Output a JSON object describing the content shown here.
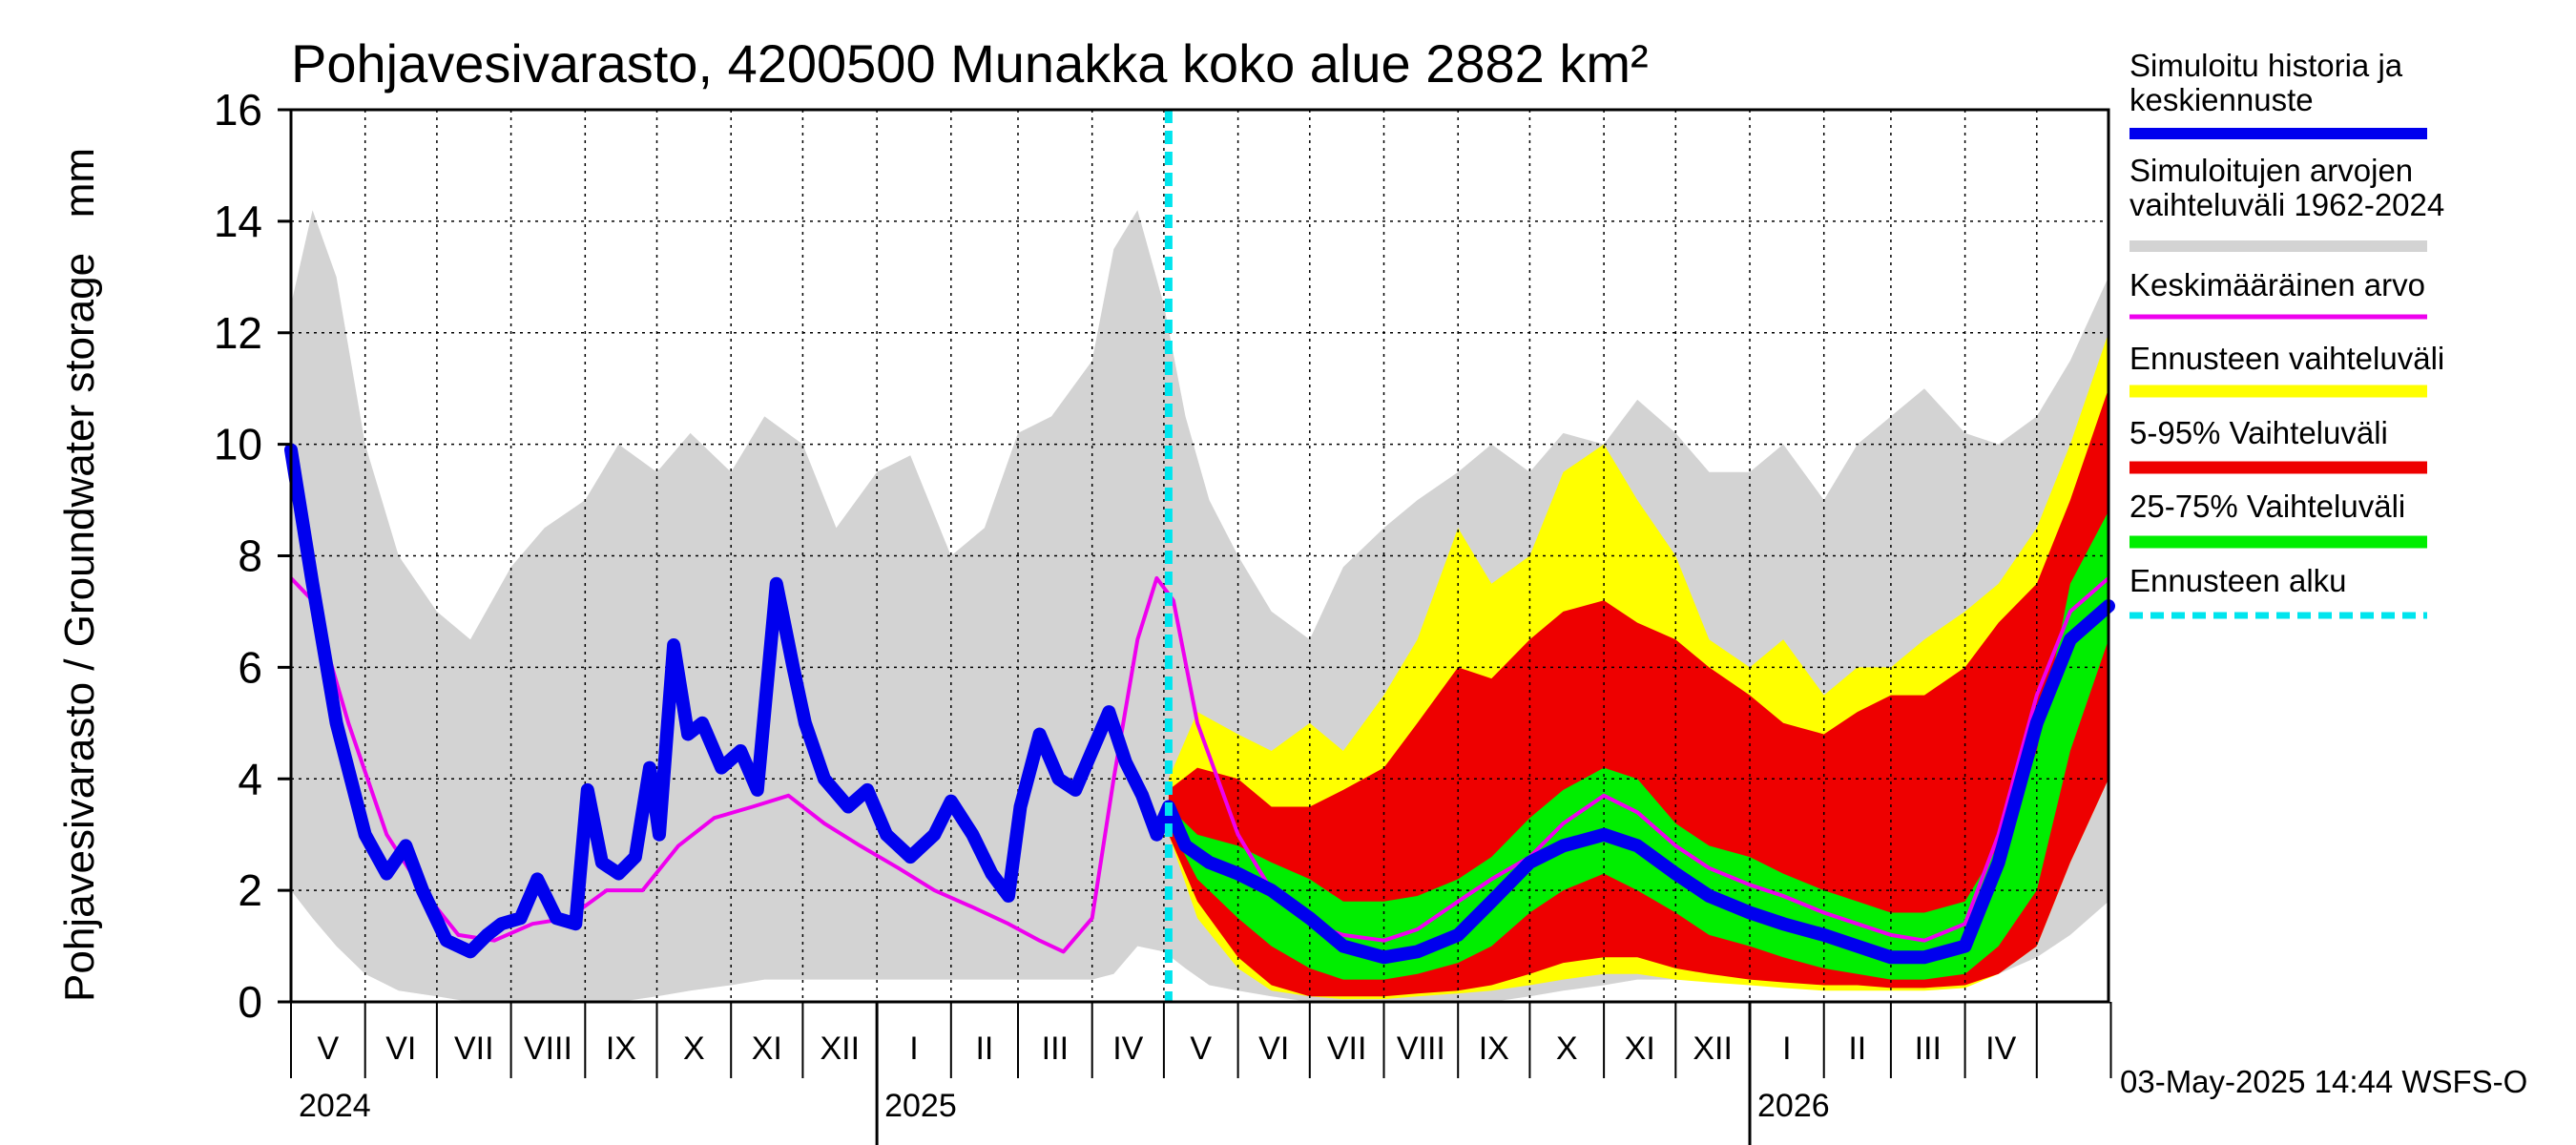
{
  "chart_data": {
    "type": "area",
    "title": "Pohjavesivarasto, 4200500 Munakka koko alue 2882 km²",
    "ylabel": "Pohjavesivarasto / Groundwater storage   mm",
    "ylim": [
      0,
      16
    ],
    "yticks": [
      "0",
      "2",
      "4",
      "6",
      "8",
      "10",
      "12",
      "14",
      "16"
    ],
    "xrange": [
      "2024-05-01",
      "2026-05-31"
    ],
    "months": [
      {
        "label": "V",
        "start": "2024-05-01"
      },
      {
        "label": "VI",
        "start": "2024-06-01"
      },
      {
        "label": "VII",
        "start": "2024-07-01"
      },
      {
        "label": "VIII",
        "start": "2024-08-01"
      },
      {
        "label": "IX",
        "start": "2024-09-01"
      },
      {
        "label": "X",
        "start": "2024-10-01"
      },
      {
        "label": "XI",
        "start": "2024-11-01"
      },
      {
        "label": "XII",
        "start": "2024-12-01"
      },
      {
        "label": "I",
        "start": "2025-01-01"
      },
      {
        "label": "II",
        "start": "2025-02-01"
      },
      {
        "label": "III",
        "start": "2025-03-01"
      },
      {
        "label": "IV",
        "start": "2025-04-01"
      },
      {
        "label": "V",
        "start": "2025-05-01"
      },
      {
        "label": "VI",
        "start": "2025-06-01"
      },
      {
        "label": "VII",
        "start": "2025-07-01"
      },
      {
        "label": "VIII",
        "start": "2025-08-01"
      },
      {
        "label": "IX",
        "start": "2025-09-01"
      },
      {
        "label": "X",
        "start": "2025-10-01"
      },
      {
        "label": "XI",
        "start": "2025-11-01"
      },
      {
        "label": "XII",
        "start": "2025-12-01"
      },
      {
        "label": "I",
        "start": "2026-01-01"
      },
      {
        "label": "II",
        "start": "2026-02-01"
      },
      {
        "label": "III",
        "start": "2026-03-01"
      },
      {
        "label": "IV",
        "start": "2026-04-01"
      },
      {
        "label": "",
        "start": "2026-05-01"
      },
      {
        "label": "",
        "start": "2026-06-01"
      }
    ],
    "years": [
      {
        "label": "2024",
        "start": "2024-05-01"
      },
      {
        "label": "2025",
        "start": "2025-01-01"
      },
      {
        "label": "2026",
        "start": "2026-01-01"
      }
    ],
    "forecast_start": "2025-05-03",
    "colors": {
      "history": "#0000ee",
      "hist_range": "#d3d3d3",
      "mean": "#ee00ee",
      "fc_range": "#ffff00",
      "p5_95": "#ee0000",
      "p25_75": "#00ee00",
      "fc_start": "#00e5ee"
    },
    "legend": [
      {
        "key": "history",
        "text": [
          "Simuloitu historia ja",
          "keskiennuste"
        ],
        "color": "#0000ee"
      },
      {
        "key": "hist_range",
        "text": [
          "Simuloitujen arvojen",
          "vaihteluväli 1962-2024"
        ],
        "color": "#d3d3d3"
      },
      {
        "key": "mean",
        "text": [
          "Keskimääräinen arvo"
        ],
        "color": "#ee00ee"
      },
      {
        "key": "fc_range",
        "text": [
          "Ennusteen vaihteluväli"
        ],
        "color": "#ffff00"
      },
      {
        "key": "p5_95",
        "text": [
          "5-95% Vaihteluväli"
        ],
        "color": "#ee0000"
      },
      {
        "key": "p25_75",
        "text": [
          "25-75% Vaihteluväli"
        ],
        "color": "#00ee00"
      },
      {
        "key": "fc_start",
        "text": [
          "Ennusteen alku"
        ],
        "color": "#00e5ee"
      }
    ],
    "series": [
      {
        "key": "hist_range",
        "kind": "band",
        "x": [
          "2024-05-01",
          "2024-05-10",
          "2024-05-20",
          "2024-06-01",
          "2024-06-15",
          "2024-07-01",
          "2024-07-15",
          "2024-08-01",
          "2024-08-15",
          "2024-09-01",
          "2024-09-15",
          "2024-10-01",
          "2024-10-15",
          "2024-11-01",
          "2024-11-15",
          "2024-12-01",
          "2024-12-15",
          "2025-01-01",
          "2025-01-15",
          "2025-02-01",
          "2025-02-15",
          "2025-03-01",
          "2025-03-15",
          "2025-04-01",
          "2025-04-10",
          "2025-04-20",
          "2025-05-01",
          "2025-05-10",
          "2025-05-20",
          "2025-06-01",
          "2025-06-15",
          "2025-07-01",
          "2025-07-15",
          "2025-08-01",
          "2025-08-15",
          "2025-09-01",
          "2025-09-15",
          "2025-10-01",
          "2025-10-15",
          "2025-11-01",
          "2025-11-15",
          "2025-12-01",
          "2025-12-15",
          "2026-01-01",
          "2026-01-15",
          "2026-02-01",
          "2026-02-15",
          "2026-03-01",
          "2026-03-15",
          "2026-04-01",
          "2026-04-15",
          "2026-05-01",
          "2026-05-15",
          "2026-05-31"
        ],
        "low": [
          2.0,
          1.5,
          1.0,
          0.5,
          0.2,
          0.1,
          0.0,
          0.0,
          0.0,
          0.0,
          0.0,
          0.1,
          0.2,
          0.3,
          0.4,
          0.4,
          0.4,
          0.4,
          0.4,
          0.4,
          0.4,
          0.4,
          0.4,
          0.4,
          0.5,
          1.0,
          0.9,
          0.6,
          0.3,
          0.2,
          0.1,
          0.0,
          0.0,
          0.0,
          0.0,
          0.0,
          0.0,
          0.1,
          0.2,
          0.3,
          0.4,
          0.4,
          0.4,
          0.4,
          0.4,
          0.4,
          0.4,
          0.4,
          0.4,
          0.4,
          0.5,
          0.8,
          1.2,
          1.8
        ],
        "high": [
          12.5,
          14.2,
          13.0,
          10.0,
          8.0,
          7.0,
          6.5,
          7.8,
          8.5,
          9.0,
          10.0,
          9.5,
          10.2,
          9.5,
          10.5,
          10.0,
          8.5,
          9.5,
          9.8,
          8.0,
          8.5,
          10.2,
          10.5,
          11.5,
          13.5,
          14.2,
          12.5,
          10.5,
          9.0,
          8.0,
          7.0,
          6.5,
          7.8,
          8.5,
          9.0,
          9.5,
          10.0,
          9.5,
          10.2,
          10.0,
          10.8,
          10.2,
          9.5,
          9.5,
          10.0,
          9.0,
          10.0,
          10.5,
          11.0,
          10.2,
          10.0,
          10.5,
          11.5,
          13.0
        ]
      },
      {
        "key": "fc_range",
        "kind": "band",
        "x": [
          "2025-05-03",
          "2025-05-15",
          "2025-06-01",
          "2025-06-15",
          "2025-07-01",
          "2025-07-15",
          "2025-08-01",
          "2025-08-15",
          "2025-09-01",
          "2025-09-15",
          "2025-10-01",
          "2025-10-15",
          "2025-11-01",
          "2025-11-15",
          "2025-12-01",
          "2025-12-15",
          "2026-01-01",
          "2026-01-15",
          "2026-02-01",
          "2026-02-15",
          "2026-03-01",
          "2026-03-15",
          "2026-04-01",
          "2026-04-15",
          "2026-05-01",
          "2026-05-15",
          "2026-05-31"
        ],
        "low": [
          3.0,
          1.5,
          0.6,
          0.2,
          0.1,
          0.05,
          0.05,
          0.1,
          0.15,
          0.2,
          0.3,
          0.4,
          0.5,
          0.5,
          0.4,
          0.35,
          0.3,
          0.25,
          0.2,
          0.2,
          0.2,
          0.2,
          0.25,
          0.5,
          1.0,
          2.5,
          4.0
        ],
        "high": [
          4.0,
          5.2,
          4.8,
          4.5,
          5.0,
          4.5,
          5.5,
          6.5,
          8.5,
          7.5,
          8.0,
          9.5,
          10.0,
          9.0,
          8.0,
          6.5,
          6.0,
          6.5,
          5.5,
          6.0,
          6.0,
          6.5,
          7.0,
          7.5,
          8.5,
          10.0,
          12.0
        ]
      },
      {
        "key": "p5_95",
        "kind": "band",
        "x": [
          "2025-05-03",
          "2025-05-15",
          "2025-06-01",
          "2025-06-15",
          "2025-07-01",
          "2025-07-15",
          "2025-08-01",
          "2025-08-15",
          "2025-09-01",
          "2025-09-15",
          "2025-10-01",
          "2025-10-15",
          "2025-11-01",
          "2025-11-15",
          "2025-12-01",
          "2025-12-15",
          "2026-01-01",
          "2026-01-15",
          "2026-02-01",
          "2026-02-15",
          "2026-03-01",
          "2026-03-15",
          "2026-04-01",
          "2026-04-15",
          "2026-05-01",
          "2026-05-15",
          "2026-05-31"
        ],
        "low": [
          3.0,
          1.8,
          0.8,
          0.3,
          0.1,
          0.1,
          0.1,
          0.15,
          0.2,
          0.3,
          0.5,
          0.7,
          0.8,
          0.8,
          0.6,
          0.5,
          0.4,
          0.35,
          0.3,
          0.3,
          0.25,
          0.25,
          0.3,
          0.5,
          1.0,
          2.5,
          4.0
        ],
        "high": [
          3.8,
          4.2,
          4.0,
          3.5,
          3.5,
          3.8,
          4.2,
          5.0,
          6.0,
          5.8,
          6.5,
          7.0,
          7.2,
          6.8,
          6.5,
          6.0,
          5.5,
          5.0,
          4.8,
          5.2,
          5.5,
          5.5,
          6.0,
          6.8,
          7.5,
          9.0,
          11.0
        ]
      },
      {
        "key": "p25_75",
        "kind": "band",
        "x": [
          "2025-05-03",
          "2025-05-15",
          "2025-06-01",
          "2025-06-15",
          "2025-07-01",
          "2025-07-15",
          "2025-08-01",
          "2025-08-15",
          "2025-09-01",
          "2025-09-15",
          "2025-10-01",
          "2025-10-15",
          "2025-11-01",
          "2025-11-15",
          "2025-12-01",
          "2025-12-15",
          "2026-01-01",
          "2026-01-15",
          "2026-02-01",
          "2026-02-15",
          "2026-03-01",
          "2026-03-15",
          "2026-04-01",
          "2026-04-15",
          "2026-05-01",
          "2026-05-15",
          "2026-05-31"
        ],
        "low": [
          3.2,
          2.2,
          1.5,
          1.0,
          0.6,
          0.4,
          0.4,
          0.5,
          0.7,
          1.0,
          1.6,
          2.0,
          2.3,
          2.0,
          1.6,
          1.2,
          1.0,
          0.8,
          0.6,
          0.5,
          0.4,
          0.4,
          0.5,
          1.0,
          2.0,
          4.5,
          6.5
        ],
        "high": [
          3.5,
          3.0,
          2.8,
          2.5,
          2.2,
          1.8,
          1.8,
          1.9,
          2.2,
          2.6,
          3.3,
          3.8,
          4.2,
          4.0,
          3.2,
          2.8,
          2.6,
          2.3,
          2.0,
          1.8,
          1.6,
          1.6,
          1.8,
          2.8,
          4.5,
          7.5,
          8.8
        ]
      },
      {
        "key": "mean",
        "kind": "line",
        "x": [
          "2024-05-01",
          "2024-05-10",
          "2024-05-25",
          "2024-06-10",
          "2024-06-25",
          "2024-07-10",
          "2024-07-25",
          "2024-08-10",
          "2024-08-25",
          "2024-09-10",
          "2024-09-25",
          "2024-10-10",
          "2024-10-25",
          "2024-11-10",
          "2024-11-25",
          "2024-12-10",
          "2024-12-25",
          "2025-01-10",
          "2025-01-25",
          "2025-02-10",
          "2025-02-25",
          "2025-03-10",
          "2025-03-20",
          "2025-04-01",
          "2025-04-10",
          "2025-04-20",
          "2025-04-28",
          "2025-05-05",
          "2025-05-15",
          "2025-06-01",
          "2025-06-15",
          "2025-07-01",
          "2025-07-15",
          "2025-08-01",
          "2025-08-15",
          "2025-09-01",
          "2025-09-15",
          "2025-10-01",
          "2025-10-15",
          "2025-11-01",
          "2025-11-15",
          "2025-12-01",
          "2025-12-15",
          "2026-01-01",
          "2026-01-15",
          "2026-02-01",
          "2026-02-15",
          "2026-03-01",
          "2026-03-15",
          "2026-04-01",
          "2026-04-15",
          "2026-05-01",
          "2026-05-15",
          "2026-05-31"
        ],
        "y": [
          7.6,
          7.2,
          5.0,
          3.0,
          2.0,
          1.2,
          1.1,
          1.4,
          1.5,
          2.0,
          2.0,
          2.8,
          3.3,
          3.5,
          3.7,
          3.2,
          2.8,
          2.4,
          2.0,
          1.7,
          1.4,
          1.1,
          0.9,
          1.5,
          4.0,
          6.5,
          7.6,
          7.2,
          5.0,
          3.0,
          2.0,
          1.4,
          1.2,
          1.1,
          1.3,
          1.8,
          2.2,
          2.6,
          3.2,
          3.7,
          3.4,
          2.8,
          2.4,
          2.1,
          1.9,
          1.6,
          1.4,
          1.2,
          1.1,
          1.4,
          3.0,
          5.5,
          7.0,
          7.6
        ]
      },
      {
        "key": "history",
        "kind": "line",
        "x": [
          "2024-05-01",
          "2024-05-10",
          "2024-05-20",
          "2024-06-01",
          "2024-06-10",
          "2024-06-18",
          "2024-06-25",
          "2024-07-05",
          "2024-07-15",
          "2024-07-22",
          "2024-07-28",
          "2024-08-05",
          "2024-08-12",
          "2024-08-20",
          "2024-08-28",
          "2024-09-02",
          "2024-09-08",
          "2024-09-15",
          "2024-09-22",
          "2024-09-28",
          "2024-10-02",
          "2024-10-08",
          "2024-10-14",
          "2024-10-20",
          "2024-10-28",
          "2024-11-05",
          "2024-11-12",
          "2024-11-20",
          "2024-11-27",
          "2024-12-02",
          "2024-12-10",
          "2024-12-20",
          "2024-12-28",
          "2025-01-05",
          "2025-01-15",
          "2025-01-25",
          "2025-02-01",
          "2025-02-10",
          "2025-02-18",
          "2025-02-25",
          "2025-03-02",
          "2025-03-10",
          "2025-03-18",
          "2025-03-25",
          "2025-04-01",
          "2025-04-08",
          "2025-04-15",
          "2025-04-22",
          "2025-04-28",
          "2025-05-03",
          "2025-05-10",
          "2025-05-20",
          "2025-06-01",
          "2025-06-15",
          "2025-07-01",
          "2025-07-15",
          "2025-08-01",
          "2025-08-15",
          "2025-09-01",
          "2025-09-15",
          "2025-10-01",
          "2025-10-15",
          "2025-11-01",
          "2025-11-15",
          "2025-12-01",
          "2025-12-15",
          "2026-01-01",
          "2026-01-15",
          "2026-02-01",
          "2026-02-15",
          "2026-03-01",
          "2026-03-15",
          "2026-04-01",
          "2026-04-15",
          "2026-05-01",
          "2026-05-15",
          "2026-05-31"
        ],
        "y": [
          9.9,
          7.5,
          5.0,
          3.0,
          2.3,
          2.8,
          2.0,
          1.1,
          0.9,
          1.2,
          1.4,
          1.5,
          2.2,
          1.5,
          1.4,
          3.8,
          2.5,
          2.3,
          2.6,
          4.2,
          3.0,
          6.4,
          4.8,
          5.0,
          4.2,
          4.5,
          3.8,
          7.5,
          6.0,
          5.0,
          4.0,
          3.5,
          3.8,
          3.0,
          2.6,
          3.0,
          3.6,
          3.0,
          2.3,
          1.9,
          3.5,
          4.8,
          4.0,
          3.8,
          4.5,
          5.2,
          4.3,
          3.7,
          3.0,
          3.5,
          2.8,
          2.5,
          2.3,
          2.0,
          1.5,
          1.0,
          0.8,
          0.9,
          1.2,
          1.8,
          2.5,
          2.8,
          3.0,
          2.8,
          2.3,
          1.9,
          1.6,
          1.4,
          1.2,
          1.0,
          0.8,
          0.8,
          1.0,
          2.5,
          5.0,
          6.5,
          7.1
        ]
      }
    ]
  },
  "footer": {
    "timestamp": "03-May-2025 14:44 WSFS-O"
  }
}
